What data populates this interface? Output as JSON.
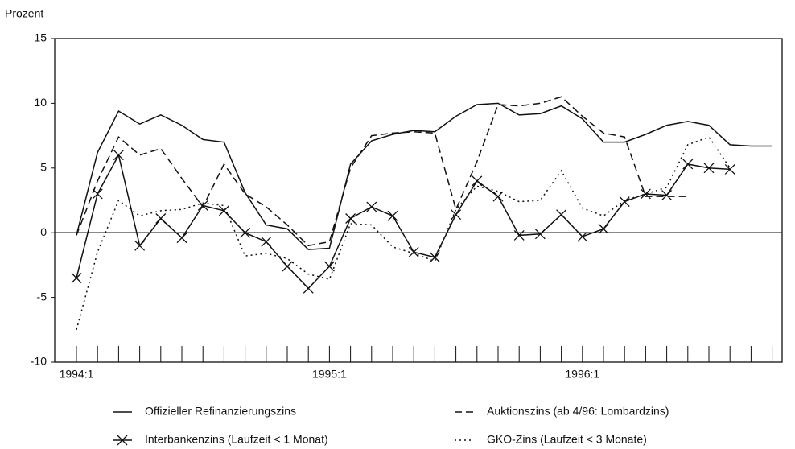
{
  "chart_data": {
    "type": "line",
    "y_label": "Prozent",
    "categories": [
      "1994:1",
      null,
      null,
      null,
      null,
      null,
      null,
      null,
      null,
      null,
      null,
      null,
      "1995:1",
      null,
      null,
      null,
      null,
      null,
      null,
      null,
      null,
      null,
      null,
      null,
      "1996:1",
      null,
      null,
      null,
      null,
      null,
      null,
      null,
      null,
      null
    ],
    "ylim": [
      -10,
      15
    ],
    "yticks": [
      -10,
      -5,
      0,
      5,
      10,
      15
    ],
    "zero_line": true,
    "color": "#111111",
    "series": [
      {
        "name": "Offizieller Refinanzierungszins",
        "style": "solid",
        "marker": null,
        "values": [
          -0.2,
          6.2,
          9.4,
          8.4,
          9.1,
          8.3,
          7.2,
          7.0,
          3.1,
          0.6,
          0.3,
          -1.3,
          -1.2,
          5.3,
          7.1,
          7.6,
          7.9,
          7.8,
          9.0,
          9.9,
          10.0,
          9.1,
          9.2,
          9.8,
          8.8,
          7.0,
          7.0,
          7.6,
          8.3,
          8.6,
          8.3,
          6.8,
          6.7,
          6.7
        ]
      },
      {
        "name": "Auktionszins (ab 4/96: Lombardzins)",
        "style": "dashed",
        "marker": null,
        "values": [
          -0.2,
          4.0,
          7.4,
          6.0,
          6.5,
          4.2,
          2.0,
          5.3,
          3.0,
          2.0,
          0.6,
          -1.0,
          -0.7,
          5.0,
          7.5,
          7.7,
          7.8,
          7.7,
          1.8,
          5.5,
          9.9,
          9.8,
          10.0,
          10.5,
          9.0,
          7.7,
          7.4,
          2.8,
          2.8,
          2.8,
          null,
          null,
          null,
          null
        ]
      },
      {
        "name": "Interbankenzins (Laufzeit < 1 Monat)",
        "style": "solid",
        "marker": "x",
        "values": [
          -3.5,
          3.0,
          6.0,
          -1.0,
          1.1,
          -0.4,
          2.1,
          1.7,
          0.0,
          -0.7,
          -2.6,
          -4.3,
          -2.6,
          1.1,
          2.0,
          1.3,
          -1.5,
          -1.9,
          1.4,
          4.0,
          2.8,
          -0.2,
          -0.1,
          1.4,
          -0.3,
          0.3,
          2.4,
          3.0,
          2.9,
          5.3,
          5.0,
          4.9,
          null,
          null
        ]
      },
      {
        "name": "GKO-Zins (Laufzeit < 3 Monate)",
        "style": "dotted",
        "marker": null,
        "values": [
          -7.5,
          -1.5,
          2.5,
          1.3,
          1.7,
          1.8,
          2.3,
          2.1,
          -1.8,
          -1.6,
          -2.0,
          -3.2,
          -3.6,
          0.7,
          0.6,
          -1.1,
          -1.6,
          -2.2,
          1.8,
          3.6,
          3.2,
          2.4,
          2.5,
          4.8,
          1.9,
          1.3,
          2.5,
          3.0,
          3.5,
          6.8,
          7.4,
          5.0,
          null,
          null
        ]
      }
    ]
  }
}
